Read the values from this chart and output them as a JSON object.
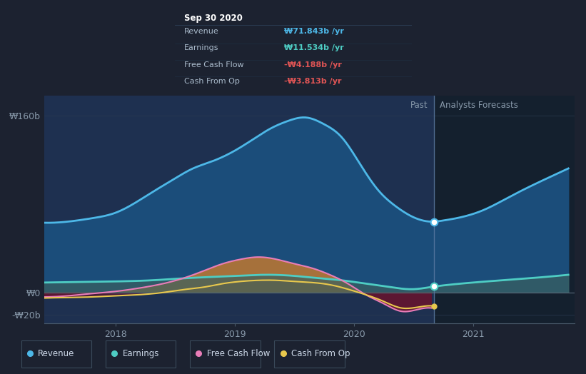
{
  "bg_color": "#1c2230",
  "plot_bg_color": "#1a2638",
  "ylabel_160": "₩160b",
  "ylabel_0": "₩0",
  "ylabel_neg20": "-₩20b",
  "xlabel_ticks": [
    "2018",
    "2019",
    "2020",
    "2021"
  ],
  "past_label": "Past",
  "forecast_label": "Analysts Forecasts",
  "legend_items": [
    {
      "label": "Revenue",
      "color": "#4db8e8"
    },
    {
      "label": "Earnings",
      "color": "#4ecdc4"
    },
    {
      "label": "Free Cash Flow",
      "color": "#e87db8"
    },
    {
      "label": "Cash From Op",
      "color": "#e8c84d"
    }
  ],
  "tooltip": {
    "title": "Sep 30 2020",
    "rows": [
      {
        "label": "Revenue",
        "value": "₩71.843b /yr",
        "color": "#4db8e8"
      },
      {
        "label": "Earnings",
        "value": "₩11.534b /yr",
        "color": "#4ecdc4"
      },
      {
        "label": "Free Cash Flow",
        "value": "-₩4.188b /yr",
        "color": "#e05555"
      },
      {
        "label": "Cash From Op",
        "value": "-₩3.813b /yr",
        "color": "#e05555"
      }
    ]
  },
  "revenue_x": [
    2017.4,
    2017.6,
    2017.8,
    2018.0,
    2018.15,
    2018.3,
    2018.5,
    2018.65,
    2018.8,
    2019.0,
    2019.15,
    2019.3,
    2019.45,
    2019.6,
    2019.75,
    2019.9,
    2020.0,
    2020.1,
    2020.2,
    2020.35,
    2020.5,
    2020.65,
    2020.75,
    2020.9,
    2021.1,
    2021.3,
    2021.6,
    2021.8
  ],
  "revenue_y": [
    63,
    64,
    67,
    72,
    80,
    90,
    103,
    112,
    118,
    128,
    138,
    148,
    155,
    158,
    152,
    140,
    125,
    108,
    93,
    78,
    68,
    64,
    65,
    68,
    75,
    86,
    102,
    112
  ],
  "earnings_x": [
    2017.4,
    2017.7,
    2018.0,
    2018.3,
    2018.6,
    2018.9,
    2019.1,
    2019.3,
    2019.5,
    2019.7,
    2019.9,
    2020.1,
    2020.3,
    2020.5,
    2020.65,
    2020.8,
    2021.0,
    2021.3,
    2021.6,
    2021.8
  ],
  "earnings_y": [
    9,
    9.5,
    10,
    11,
    13,
    14.5,
    15.5,
    16,
    15,
    13,
    11,
    8,
    5,
    3,
    5,
    7,
    9,
    11.5,
    14,
    16
  ],
  "fcf_x": [
    2017.4,
    2017.6,
    2017.8,
    2018.0,
    2018.2,
    2018.4,
    2018.6,
    2018.75,
    2018.9,
    2019.05,
    2019.2,
    2019.35,
    2019.5,
    2019.65,
    2019.8,
    2019.95,
    2020.1,
    2020.25,
    2020.4,
    2020.55,
    2020.65
  ],
  "fcf_y": [
    -4,
    -3,
    -1,
    1,
    4,
    8,
    14,
    20,
    26,
    30,
    32,
    30,
    26,
    22,
    16,
    8,
    -2,
    -10,
    -17,
    -15,
    -14
  ],
  "cashop_x": [
    2017.4,
    2017.6,
    2017.8,
    2018.0,
    2018.2,
    2018.4,
    2018.6,
    2018.75,
    2018.9,
    2019.05,
    2019.2,
    2019.35,
    2019.5,
    2019.65,
    2019.8,
    2019.95,
    2020.1,
    2020.25,
    2020.4,
    2020.55,
    2020.65
  ],
  "cashop_y": [
    -5,
    -4.5,
    -4,
    -3,
    -2,
    0,
    3,
    5,
    8,
    10,
    11,
    11,
    10,
    9,
    7,
    3,
    -2,
    -8,
    -14,
    -13,
    -12
  ],
  "divider_xval": 2020.67,
  "dot_revenue_y": 64,
  "dot_earnings_y": 5.5,
  "dot_cashop_y": -12.5,
  "xlim": [
    2017.4,
    2021.85
  ],
  "ylim": [
    -28,
    178
  ],
  "y0_val": 0,
  "y160_val": 160,
  "yneg20_val": -20
}
